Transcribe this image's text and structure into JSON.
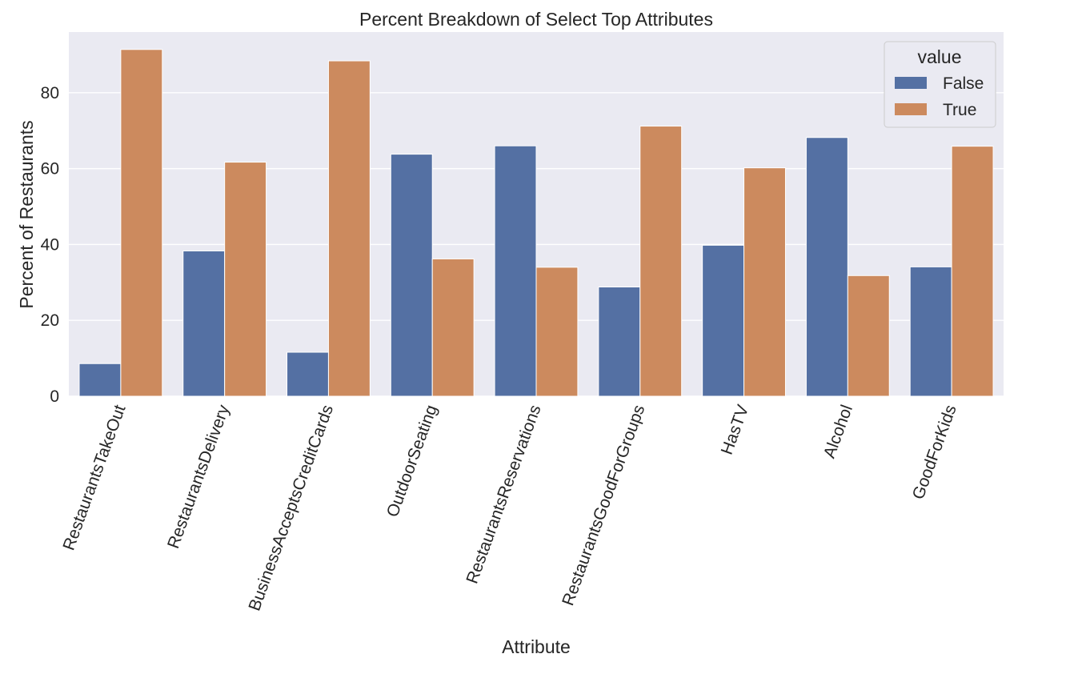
{
  "chart_data": {
    "type": "bar",
    "title": "Percent Breakdown of Select Top Attributes",
    "xlabel": "Attribute",
    "ylabel": "Percent of Restaurants",
    "categories": [
      "RestaurantsTakeOut",
      "RestaurantsDelivery",
      "BusinessAcceptsCreditCards",
      "OutdoorSeating",
      "RestaurantsReservations",
      "RestaurantsGoodForGroups",
      "HasTV",
      "Alcohol",
      "GoodForKids"
    ],
    "series": [
      {
        "name": "False",
        "color": "#5470a3",
        "values": [
          8.6,
          38.3,
          11.6,
          63.8,
          66.0,
          28.8,
          39.8,
          68.2,
          34.1
        ]
      },
      {
        "name": "True",
        "color": "#cc8a5e",
        "values": [
          91.4,
          61.7,
          88.4,
          36.2,
          34.0,
          71.2,
          60.2,
          31.8,
          65.9
        ]
      }
    ],
    "ylim": [
      0,
      96
    ],
    "yticks": [
      0,
      20,
      40,
      60,
      80
    ],
    "grid": true,
    "legend": {
      "title": "value",
      "position": "top-right"
    }
  }
}
